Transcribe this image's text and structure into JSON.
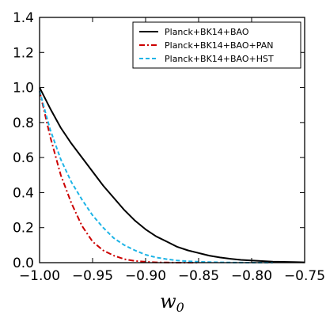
{
  "chart_data": {
    "type": "line",
    "xlabel": "w",
    "xlabel_sub": "0",
    "ylabel": "",
    "xlim": [
      -1.0,
      -0.75
    ],
    "ylim": [
      0.0,
      1.4
    ],
    "xticks": [
      "−1.00",
      "−0.95",
      "−0.90",
      "−0.85",
      "−0.80",
      "−0.75"
    ],
    "yticks": [
      "0.0",
      "0.2",
      "0.4",
      "0.6",
      "0.8",
      "1.0",
      "1.2",
      "1.4"
    ],
    "xtick_values": [
      -1.0,
      -0.95,
      -0.9,
      -0.85,
      -0.8,
      -0.75
    ],
    "ytick_values": [
      0.0,
      0.2,
      0.4,
      0.6,
      0.8,
      1.0,
      1.2,
      1.4
    ],
    "grid": false,
    "legend_position": "top-right",
    "series": [
      {
        "name": "Planck+BK14+BAO",
        "color": "#000000",
        "dash": "solid",
        "x": [
          -1.0,
          -0.99,
          -0.98,
          -0.97,
          -0.96,
          -0.95,
          -0.94,
          -0.93,
          -0.92,
          -0.91,
          -0.9,
          -0.89,
          -0.88,
          -0.87,
          -0.86,
          -0.85,
          -0.84,
          -0.83,
          -0.82,
          -0.81,
          -0.8,
          -0.78,
          -0.76,
          -0.75
        ],
        "y": [
          1.0,
          0.88,
          0.77,
          0.68,
          0.6,
          0.52,
          0.44,
          0.37,
          0.3,
          0.24,
          0.19,
          0.15,
          0.12,
          0.09,
          0.07,
          0.055,
          0.04,
          0.03,
          0.022,
          0.016,
          0.012,
          0.006,
          0.003,
          0.002
        ]
      },
      {
        "name": "Planck+BK14+BAO+PAN",
        "color": "#cc0000",
        "dash": "dashdot",
        "x": [
          -1.0,
          -0.99,
          -0.98,
          -0.97,
          -0.96,
          -0.95,
          -0.94,
          -0.93,
          -0.92,
          -0.91,
          -0.9,
          -0.89,
          -0.88,
          -0.87,
          -0.85
        ],
        "y": [
          0.98,
          0.72,
          0.5,
          0.34,
          0.21,
          0.12,
          0.07,
          0.04,
          0.02,
          0.01,
          0.005,
          0.002,
          0.001,
          0.0,
          0.0
        ]
      },
      {
        "name": "Planck+BK14+BAO+HST",
        "color": "#1eb4e6",
        "dash": "dashed",
        "x": [
          -1.0,
          -0.99,
          -0.98,
          -0.97,
          -0.96,
          -0.95,
          -0.94,
          -0.93,
          -0.92,
          -0.91,
          -0.9,
          -0.89,
          -0.88,
          -0.87,
          -0.86,
          -0.85,
          -0.84,
          -0.83,
          -0.82,
          -0.8,
          -0.78
        ],
        "y": [
          0.98,
          0.76,
          0.59,
          0.46,
          0.36,
          0.27,
          0.2,
          0.14,
          0.1,
          0.07,
          0.045,
          0.03,
          0.02,
          0.012,
          0.008,
          0.005,
          0.003,
          0.002,
          0.001,
          0.0,
          0.0
        ]
      }
    ]
  }
}
